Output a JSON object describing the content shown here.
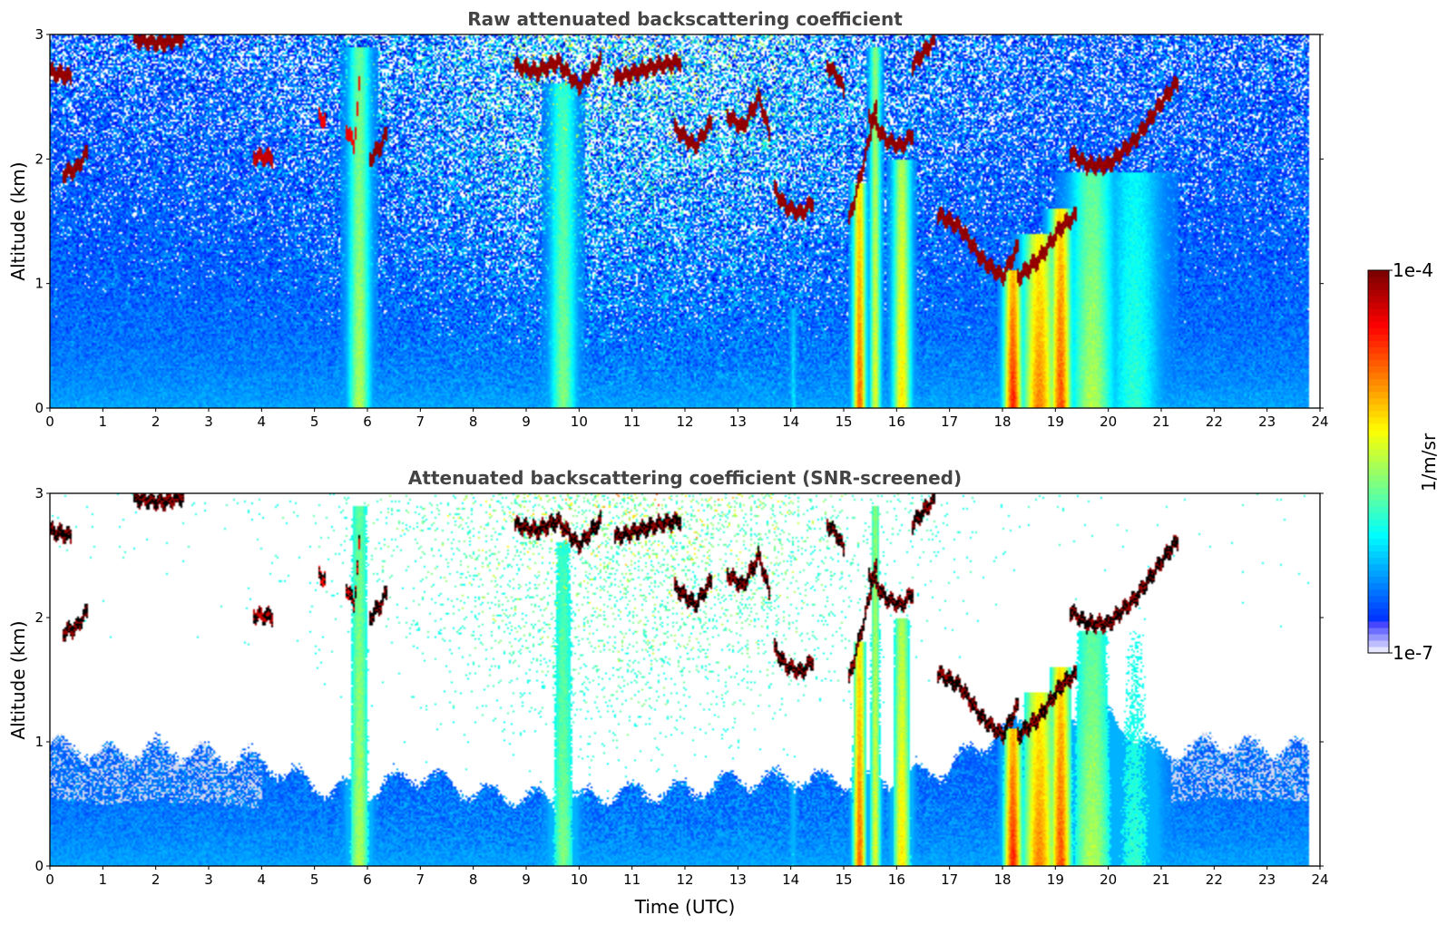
{
  "chart_data": [
    {
      "type": "heatmap",
      "title": "Raw attenuated backscattering coefficient",
      "xlabel": "",
      "ylabel": "Altitude (km)",
      "xlim": [
        0,
        24
      ],
      "ylim": [
        0,
        3
      ],
      "xticks": [
        "0",
        "1",
        "2",
        "3",
        "4",
        "5",
        "6",
        "7",
        "8",
        "9",
        "10",
        "11",
        "12",
        "13",
        "14",
        "15",
        "16",
        "17",
        "18",
        "19",
        "20",
        "21",
        "22",
        "23",
        "24"
      ],
      "yticks": [
        "0",
        "1",
        "2",
        "3"
      ],
      "data_end_hour": 23.8,
      "snr_screened": false,
      "grid": false,
      "cloud_layers": [
        {
          "x": [
            0.0,
            0.3,
            0.4
          ],
          "y": [
            2.7,
            2.67,
            2.65
          ],
          "intensity": 1.0
        },
        {
          "x": [
            0.25,
            0.5,
            0.7
          ],
          "y": [
            1.88,
            1.92,
            2.05
          ],
          "intensity": 1.0
        },
        {
          "x": [
            1.6,
            2.1,
            2.5
          ],
          "y": [
            2.96,
            2.93,
            2.97
          ],
          "intensity": 1.0
        },
        {
          "x": [
            3.85,
            4.2
          ],
          "y": [
            2.02,
            2.01
          ],
          "intensity": 0.95
        },
        {
          "x": [
            5.1,
            5.2
          ],
          "y": [
            2.35,
            2.3
          ],
          "intensity": 0.9
        },
        {
          "x": [
            5.6,
            5.75,
            5.85
          ],
          "y": [
            2.25,
            2.1,
            2.6
          ],
          "intensity": 0.9
        },
        {
          "x": [
            6.05,
            6.25,
            6.35
          ],
          "y": [
            2.0,
            2.1,
            2.2
          ],
          "intensity": 1.0
        },
        {
          "x": [
            8.8,
            9.2,
            9.6,
            10.0,
            10.4
          ],
          "y": [
            2.75,
            2.7,
            2.78,
            2.58,
            2.78
          ],
          "intensity": 1.0
        },
        {
          "x": [
            10.7,
            11.1,
            11.5,
            11.9
          ],
          "y": [
            2.65,
            2.7,
            2.75,
            2.78
          ],
          "intensity": 1.0
        },
        {
          "x": [
            11.8,
            12.2,
            12.5
          ],
          "y": [
            2.25,
            2.1,
            2.3
          ],
          "intensity": 1.0
        },
        {
          "x": [
            12.8,
            13.1,
            13.4,
            13.6
          ],
          "y": [
            2.35,
            2.25,
            2.5,
            2.2
          ],
          "intensity": 1.0
        },
        {
          "x": [
            13.7,
            13.9,
            14.2,
            14.4
          ],
          "y": [
            1.75,
            1.62,
            1.56,
            1.65
          ],
          "intensity": 1.0
        },
        {
          "x": [
            14.7,
            14.9,
            15.0
          ],
          "y": [
            2.75,
            2.65,
            2.55
          ],
          "intensity": 1.0
        },
        {
          "x": [
            15.1,
            15.4,
            15.6
          ],
          "y": [
            1.5,
            2.0,
            2.4
          ],
          "intensity": 1.0
        },
        {
          "x": [
            15.5,
            15.8,
            16.1,
            16.3
          ],
          "y": [
            2.35,
            2.15,
            2.1,
            2.2
          ],
          "intensity": 1.0
        },
        {
          "x": [
            16.3,
            16.5,
            16.7
          ],
          "y": [
            2.75,
            2.85,
            2.95
          ],
          "intensity": 1.0
        },
        {
          "x": [
            16.8,
            17.2,
            17.6,
            18.0,
            18.3
          ],
          "y": [
            1.55,
            1.45,
            1.2,
            1.05,
            1.3
          ],
          "intensity": 1.0
        },
        {
          "x": [
            18.3,
            18.7,
            19.1,
            19.4
          ],
          "y": [
            1.05,
            1.2,
            1.45,
            1.55
          ],
          "intensity": 1.0
        },
        {
          "x": [
            19.3,
            19.6,
            20.0,
            20.5,
            21.0,
            21.3
          ],
          "y": [
            2.05,
            1.95,
            1.95,
            2.15,
            2.45,
            2.62
          ],
          "intensity": 1.0
        }
      ],
      "plumes": [
        {
          "x": 5.85,
          "width": 0.3,
          "top": 2.9,
          "intensity": 0.55
        },
        {
          "x": 9.7,
          "width": 0.35,
          "top": 2.6,
          "intensity": 0.5
        },
        {
          "x": 14.05,
          "width": 0.08,
          "top": 0.8,
          "intensity": 0.35
        },
        {
          "x": 15.3,
          "width": 0.18,
          "top": 1.8,
          "intensity": 0.78
        },
        {
          "x": 15.6,
          "width": 0.15,
          "top": 2.9,
          "intensity": 0.6
        },
        {
          "x": 16.1,
          "width": 0.25,
          "top": 2.0,
          "intensity": 0.65
        },
        {
          "x": 18.2,
          "width": 0.25,
          "top": 1.1,
          "intensity": 0.85
        },
        {
          "x": 18.7,
          "width": 0.45,
          "top": 1.4,
          "intensity": 0.75
        },
        {
          "x": 19.1,
          "width": 0.3,
          "top": 1.6,
          "intensity": 0.8
        },
        {
          "x": 19.7,
          "width": 0.6,
          "top": 1.9,
          "intensity": 0.55
        },
        {
          "x": 20.5,
          "width": 0.7,
          "top": 1.9,
          "intensity": 0.42
        }
      ]
    },
    {
      "type": "heatmap",
      "title": "Attenuated backscattering coefficient (SNR-screened)",
      "xlabel": "Time (UTC)",
      "ylabel": "Altitude (km)",
      "xlim": [
        0,
        24
      ],
      "ylim": [
        0,
        3
      ],
      "xticks": [
        "0",
        "1",
        "2",
        "3",
        "4",
        "5",
        "6",
        "7",
        "8",
        "9",
        "10",
        "11",
        "12",
        "13",
        "14",
        "15",
        "16",
        "17",
        "18",
        "19",
        "20",
        "21",
        "22",
        "23",
        "24"
      ],
      "yticks": [
        "0",
        "1",
        "2",
        "3"
      ],
      "data_end_hour": 23.8,
      "snr_screened": true,
      "boundary_layer_top_km": [
        1.0,
        0.9,
        0.95,
        0.9,
        0.85,
        0.65,
        0.6,
        0.75,
        0.6,
        0.55,
        0.55,
        0.6,
        0.6,
        0.7,
        0.7,
        0.7,
        0.7,
        0.8,
        1.1,
        1.2,
        1.2,
        0.9,
        1.0,
        0.95,
        0.95
      ],
      "grid": false
    }
  ],
  "colorbar": {
    "label": "1/m/sr",
    "max_label": "1e-4",
    "min_label": "1e-7",
    "colormap": "jet"
  }
}
